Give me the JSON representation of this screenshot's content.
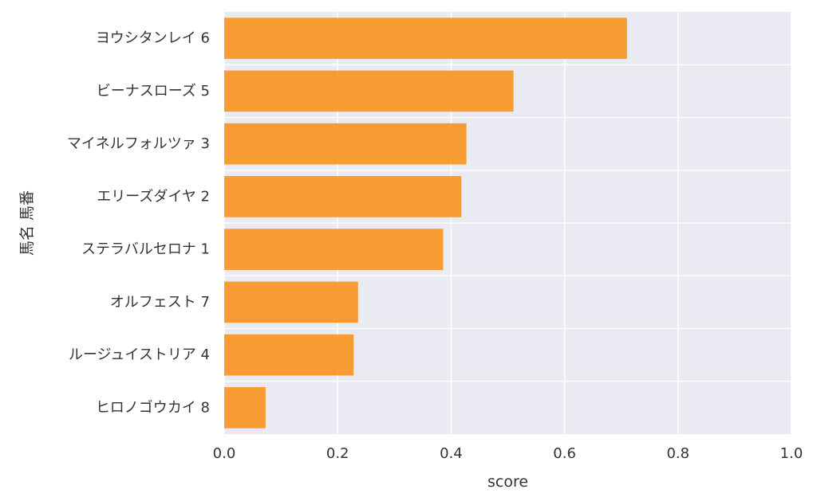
{
  "chart_data": {
    "type": "bar",
    "orientation": "horizontal",
    "xlabel": "score",
    "ylabel": "馬名 馬番",
    "xlim": [
      0.0,
      1.0
    ],
    "x_ticks": [
      "0.0",
      "0.2",
      "0.4",
      "0.6",
      "0.8",
      "1.0"
    ],
    "grid": true,
    "bar_color": "#f7931e",
    "background_color": "#eaeaf2",
    "categories": [
      "ヨウシタンレイ 6",
      "ビーナスローズ 5",
      "マイネルフォルツァ 3",
      "エリーズダイヤ 2",
      "ステラバルセロナ 1",
      "オルフェスト 7",
      "ルージュイストリア 4",
      "ヒロノゴウカイ 8"
    ],
    "values": [
      0.71,
      0.51,
      0.427,
      0.418,
      0.386,
      0.236,
      0.228,
      0.073
    ]
  }
}
